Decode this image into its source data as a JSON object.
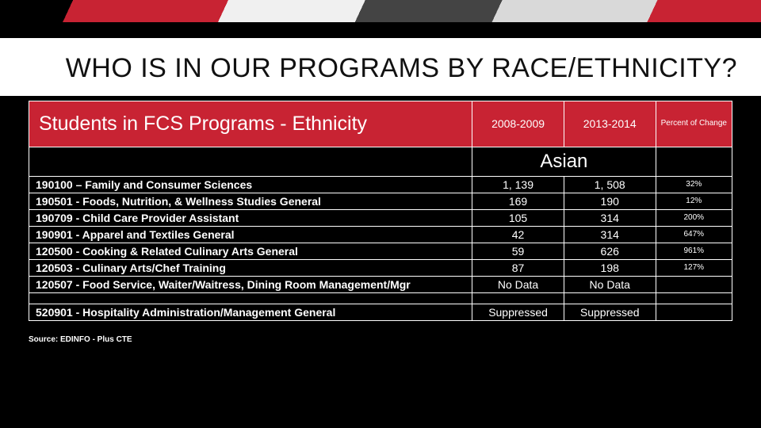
{
  "title": "WHO IS IN OUR PROGRAMS BY RACE/ETHNICITY?",
  "header": {
    "main": "Students in FCS Programs - Ethnicity",
    "col1": "2008-2009",
    "col2": "2013-2014",
    "col3": "Percent of Change"
  },
  "group_label": "Asian",
  "rows": [
    {
      "label": "190100 – Family and Consumer Sciences",
      "v1": "1, 139",
      "v2": "1, 508",
      "pct": "32%"
    },
    {
      "label": "190501 - Foods, Nutrition, & Wellness Studies General",
      "v1": "169",
      "v2": "190",
      "pct": "12%"
    },
    {
      "label": "190709 - Child Care Provider Assistant",
      "v1": "105",
      "v2": "314",
      "pct": "200%"
    },
    {
      "label": "190901 - Apparel and Textiles General",
      "v1": "42",
      "v2": "314",
      "pct": "647%"
    },
    {
      "label": "120500 - Cooking & Related Culinary Arts General",
      "v1": "59",
      "v2": "626",
      "pct": "961%"
    },
    {
      "label": "120503 - Culinary Arts/Chef Training",
      "v1": "87",
      "v2": "198",
      "pct": "127%"
    },
    {
      "label": "120507 - Food Service, Waiter/Waitress, Dining Room Management/Mgr",
      "v1": "No Data",
      "v2": "No Data",
      "pct": ""
    }
  ],
  "row8": {
    "label": "520901 - Hospitality Administration/Management General",
    "v1": "Suppressed",
    "v2": "Suppressed",
    "pct": ""
  },
  "source": "Source: EDINFO - Plus CTE",
  "colors": {
    "accent": "#c82333",
    "bg": "#000000",
    "text_on_accent": "#ffffff",
    "title_bg": "#ffffff",
    "title_text": "#111111"
  }
}
